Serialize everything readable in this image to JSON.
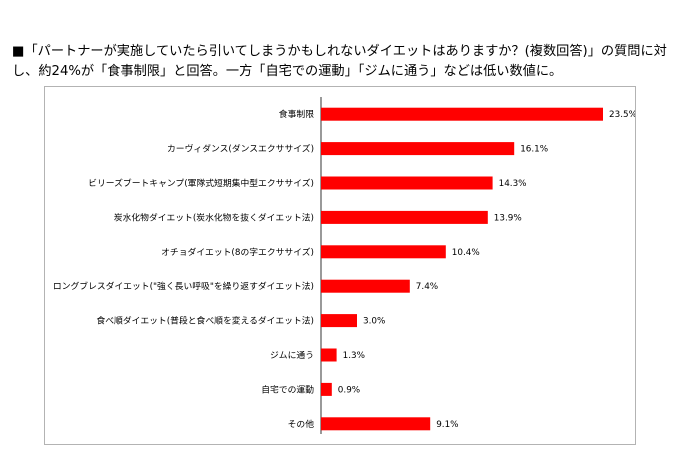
{
  "header": {
    "caption": "■「パートナーが実施していたら引いてしまうかもしれないダイエットはありますか？(複数回答)」の質問に対し、約24%が「食事制限」と回答。一方「自宅での運動」「ジムに通う」などは低い数値に。"
  },
  "chart_data": {
    "type": "bar",
    "orientation": "horizontal",
    "categories": [
      "食事制限",
      "カーヴィダンス(ダンスエクササイズ)",
      "ビリーズブートキャンプ(軍隊式短期集中型エクササイズ)",
      "炭水化物ダイエット(炭水化物を抜くダイエット法)",
      "オチョダイエット(8の字エクササイズ)",
      "ロングブレスダイエット(\"強く長い呼吸\"を繰り返すダイエット法)",
      "食べ順ダイエット(普段と食べ順を変えるダイエット法)",
      "ジムに通う",
      "自宅での運動",
      "その他"
    ],
    "values": [
      23.5,
      16.1,
      14.3,
      13.9,
      10.4,
      7.4,
      3.0,
      1.3,
      0.9,
      9.1
    ],
    "value_labels": [
      "23.5%",
      "16.1%",
      "14.3%",
      "13.9%",
      "10.4%",
      "7.4%",
      "3.0%",
      "1.3%",
      "0.9%",
      "9.1%"
    ],
    "bar_color": "#ff0000",
    "xlim": [
      0,
      23.5
    ],
    "grid": false,
    "legend": "none"
  }
}
